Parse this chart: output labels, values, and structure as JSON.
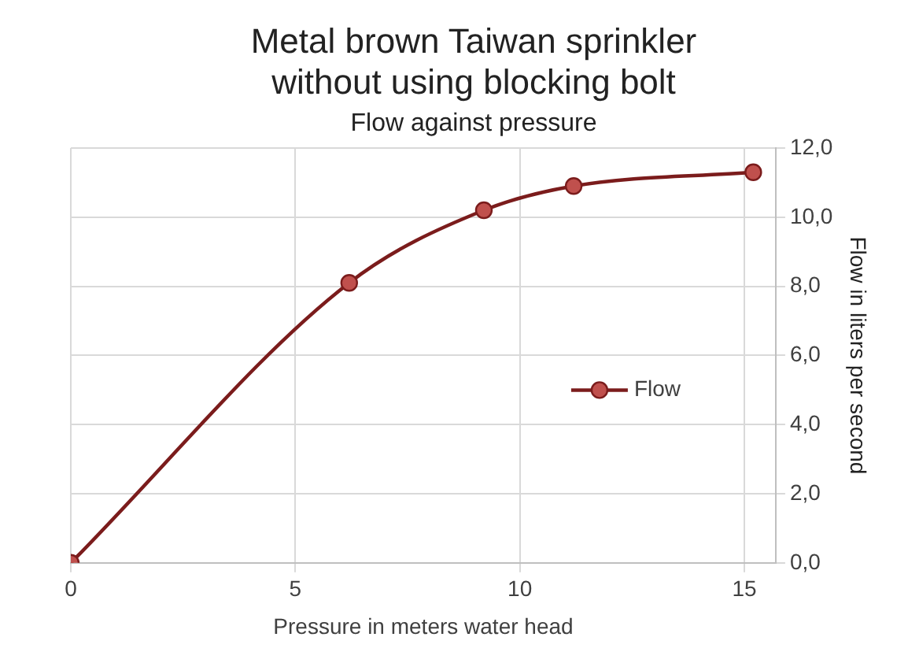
{
  "chart_data": {
    "type": "line",
    "title": "Metal brown Taiwan sprinkler without using blocking bolt",
    "subtitle": "Flow against pressure",
    "xlabel": "Pressure in meters water head",
    "ylabel": "Flow in liters per second",
    "x": [
      0,
      6.2,
      9.2,
      11.2,
      15.2
    ],
    "series": [
      {
        "name": "Flow",
        "color": "#7b1c1c",
        "values": [
          0,
          8.1,
          10.2,
          10.9,
          11.3
        ]
      }
    ],
    "xlim": [
      0,
      15.7
    ],
    "xticks": [
      0,
      5,
      10,
      15
    ],
    "ylim": [
      0,
      12
    ],
    "yticks": [
      {
        "value": 0,
        "label": "0,0"
      },
      {
        "value": 2,
        "label": "2,0"
      },
      {
        "value": 4,
        "label": "4,0"
      },
      {
        "value": 6,
        "label": "6,0"
      },
      {
        "value": 8,
        "label": "8,0"
      },
      {
        "value": 10,
        "label": "10,0"
      },
      {
        "value": 12,
        "label": "12,0"
      }
    ],
    "grid": true,
    "legend": "right",
    "marker": "circle",
    "line_style": "solid"
  }
}
